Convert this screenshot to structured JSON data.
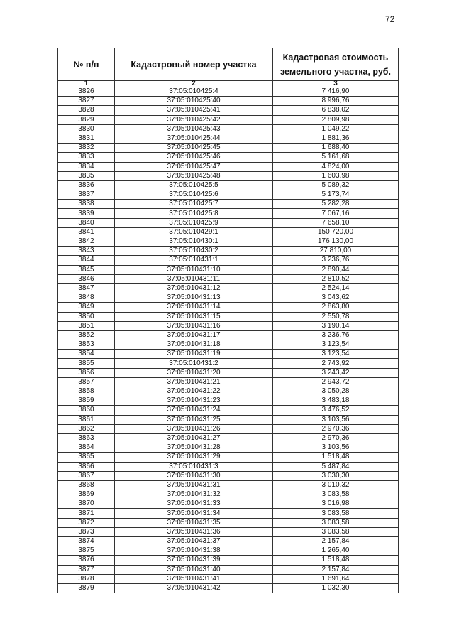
{
  "page_number": "72",
  "table": {
    "headers": [
      "№ п/п",
      "Кадастровый номер участка",
      "Кадастровая стоимость земельного участка, руб."
    ],
    "column_numbers": [
      "1",
      "2",
      "3"
    ],
    "rows": [
      [
        "3826",
        "37:05:010425:4",
        "7 416,90"
      ],
      [
        "3827",
        "37:05:010425:40",
        "8 996,76"
      ],
      [
        "3828",
        "37:05:010425:41",
        "6 838,02"
      ],
      [
        "3829",
        "37:05:010425:42",
        "2 809,98"
      ],
      [
        "3830",
        "37:05:010425:43",
        "1 049,22"
      ],
      [
        "3831",
        "37:05:010425:44",
        "1 881,36"
      ],
      [
        "3832",
        "37:05:010425:45",
        "1 688,40"
      ],
      [
        "3833",
        "37:05:010425:46",
        "5 161,68"
      ],
      [
        "3834",
        "37:05:010425:47",
        "4 824,00"
      ],
      [
        "3835",
        "37:05:010425:48",
        "1 603,98"
      ],
      [
        "3836",
        "37:05:010425:5",
        "5 089,32"
      ],
      [
        "3837",
        "37:05:010425:6",
        "5 173,74"
      ],
      [
        "3838",
        "37:05:010425:7",
        "5 282,28"
      ],
      [
        "3839",
        "37:05:010425:8",
        "7 067,16"
      ],
      [
        "3840",
        "37:05:010425:9",
        "7 658,10"
      ],
      [
        "3841",
        "37:05:010429:1",
        "150 720,00"
      ],
      [
        "3842",
        "37:05:010430:1",
        "176 130,00"
      ],
      [
        "3843",
        "37:05:010430:2",
        "27 810,00"
      ],
      [
        "3844",
        "37:05:010431:1",
        "3 236,76"
      ],
      [
        "3845",
        "37:05:010431:10",
        "2 890,44"
      ],
      [
        "3846",
        "37:05:010431:11",
        "2 810,52"
      ],
      [
        "3847",
        "37:05:010431:12",
        "2 524,14"
      ],
      [
        "3848",
        "37:05:010431:13",
        "3 043,62"
      ],
      [
        "3849",
        "37:05:010431:14",
        "2 863,80"
      ],
      [
        "3850",
        "37:05:010431:15",
        "2 550,78"
      ],
      [
        "3851",
        "37:05:010431:16",
        "3 190,14"
      ],
      [
        "3852",
        "37:05:010431:17",
        "3 236,76"
      ],
      [
        "3853",
        "37:05:010431:18",
        "3 123,54"
      ],
      [
        "3854",
        "37:05:010431:19",
        "3 123,54"
      ],
      [
        "3855",
        "37:05:010431:2",
        "2 743,92"
      ],
      [
        "3856",
        "37:05:010431:20",
        "3 243,42"
      ],
      [
        "3857",
        "37:05:010431:21",
        "2 943,72"
      ],
      [
        "3858",
        "37:05:010431:22",
        "3 050,28"
      ],
      [
        "3859",
        "37:05:010431:23",
        "3 483,18"
      ],
      [
        "3860",
        "37:05:010431:24",
        "3 476,52"
      ],
      [
        "3861",
        "37:05:010431:25",
        "3 103,56"
      ],
      [
        "3862",
        "37:05:010431:26",
        "2 970,36"
      ],
      [
        "3863",
        "37:05:010431:27",
        "2 970,36"
      ],
      [
        "3864",
        "37:05:010431:28",
        "3 103,56"
      ],
      [
        "3865",
        "37:05:010431:29",
        "1 518,48"
      ],
      [
        "3866",
        "37:05:010431:3",
        "5 487,84"
      ],
      [
        "3867",
        "37:05:010431:30",
        "3 030,30"
      ],
      [
        "3868",
        "37:05:010431:31",
        "3 010,32"
      ],
      [
        "3869",
        "37:05:010431:32",
        "3 083,58"
      ],
      [
        "3870",
        "37:05:010431:33",
        "3 016,98"
      ],
      [
        "3871",
        "37:05:010431:34",
        "3 083,58"
      ],
      [
        "3872",
        "37:05:010431:35",
        "3 083,58"
      ],
      [
        "3873",
        "37:05:010431:36",
        "3 083,58"
      ],
      [
        "3874",
        "37:05:010431:37",
        "2 157,84"
      ],
      [
        "3875",
        "37:05:010431:38",
        "1 265,40"
      ],
      [
        "3876",
        "37:05:010431:39",
        "1 518,48"
      ],
      [
        "3877",
        "37:05:010431:40",
        "2 157,84"
      ],
      [
        "3878",
        "37:05:010431:41",
        "1 691,64"
      ],
      [
        "3879",
        "37:05:010431:42",
        "1 032,30"
      ]
    ]
  }
}
